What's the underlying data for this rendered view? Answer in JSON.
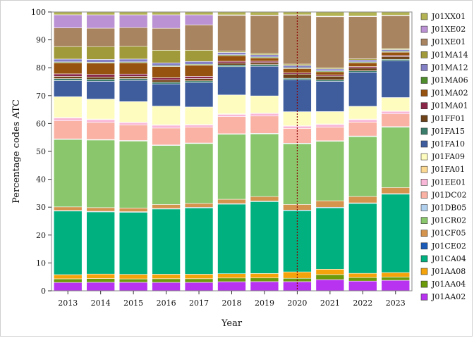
{
  "chart_data": {
    "type": "bar",
    "stacked": true,
    "xlabel": "Year",
    "ylabel": "Percentage codes ATC",
    "ylim": [
      0,
      100
    ],
    "yticks": [
      0,
      10,
      20,
      30,
      40,
      50,
      60,
      70,
      80,
      90,
      100
    ],
    "grid": false,
    "legend_position": "right",
    "annotations": [
      {
        "type": "vertical-dotted-line",
        "x": "2020",
        "color": "#8b0000"
      }
    ],
    "categories": [
      "2013",
      "2014",
      "2015",
      "2016",
      "2017",
      "2018",
      "2019",
      "2020",
      "2021",
      "2022",
      "2023"
    ],
    "series": [
      {
        "name": "J01AA02",
        "color": "#b833f0",
        "values": [
          3.0,
          3.0,
          3.0,
          3.0,
          3.0,
          3.2,
          3.3,
          3.3,
          4.0,
          3.5,
          3.8
        ]
      },
      {
        "name": "J01AA04",
        "color": "#6b9a0a",
        "values": [
          1.3,
          1.3,
          1.2,
          1.3,
          1.3,
          1.3,
          1.3,
          1.2,
          1.8,
          1.3,
          1.2
        ]
      },
      {
        "name": "J01AA08",
        "color": "#f5a30a",
        "values": [
          1.5,
          1.6,
          1.6,
          1.6,
          1.6,
          1.5,
          1.6,
          2.3,
          1.9,
          1.5,
          1.6
        ]
      },
      {
        "name": "J01CA04",
        "color": "#00b07f",
        "values": [
          22.8,
          21.9,
          21.9,
          23.2,
          23.6,
          24.4,
          25.7,
          22.0,
          21.9,
          25.2,
          28.3
        ]
      },
      {
        "name": "J01CE02",
        "color": "#1c5cb8",
        "values": [
          0.2,
          0.2,
          0.2,
          0.2,
          0.2,
          0.2,
          0.2,
          0.2,
          0.2,
          0.2,
          0.2
        ]
      },
      {
        "name": "J01CF05",
        "color": "#d5944e",
        "values": [
          1.3,
          1.3,
          1.3,
          1.4,
          1.4,
          1.5,
          1.6,
          2.0,
          2.3,
          2.3,
          2.2
        ]
      },
      {
        "name": "J01CR02",
        "color": "#8ac76c",
        "values": [
          24.2,
          23.8,
          23.6,
          21.0,
          21.3,
          22.8,
          22.4,
          21.8,
          21.2,
          21.6,
          21.8
        ]
      },
      {
        "name": "J01DB05",
        "color": "#b0d0ee",
        "values": [
          0.2,
          0.2,
          0.2,
          0.2,
          0.2,
          0.2,
          0.2,
          0.2,
          0.2,
          0.2,
          0.2
        ]
      },
      {
        "name": "J01DC02",
        "color": "#f9b2a4",
        "values": [
          6.5,
          6.0,
          5.5,
          6.0,
          5.6,
          6.0,
          6.2,
          5.3,
          4.8,
          5.0,
          4.6
        ]
      },
      {
        "name": "J01EE01",
        "color": "#f9b8d8",
        "values": [
          1.0,
          1.0,
          0.8,
          1.0,
          0.8,
          0.8,
          0.9,
          0.8,
          1.0,
          0.9,
          0.9
        ]
      },
      {
        "name": "J01FA01",
        "color": "#fcd992",
        "values": [
          0.2,
          0.2,
          0.2,
          0.2,
          0.2,
          0.2,
          0.2,
          0.2,
          0.2,
          0.2,
          0.2
        ]
      },
      {
        "name": "J01FA09",
        "color": "#fefcbe",
        "values": [
          7.4,
          7.0,
          7.2,
          6.6,
          6.2,
          6.6,
          6.1,
          5.0,
          4.4,
          4.6,
          4.8
        ]
      },
      {
        "name": "J01FA10",
        "color": "#3f5d9d",
        "values": [
          5.8,
          6.3,
          7.5,
          7.9,
          8.7,
          9.9,
          10.6,
          11.5,
          10.8,
          12.3,
          13.3
        ]
      },
      {
        "name": "J01FA15",
        "color": "#3a7d6a",
        "values": [
          0.7,
          0.7,
          0.6,
          0.6,
          0.6,
          0.6,
          0.6,
          0.5,
          0.5,
          0.5,
          0.5
        ]
      },
      {
        "name": "J01FF01",
        "color": "#6e4218",
        "values": [
          0.8,
          0.8,
          0.8,
          0.8,
          0.8,
          0.7,
          0.7,
          1.5,
          1.3,
          1.0,
          1.0
        ]
      },
      {
        "name": "J01MA01",
        "color": "#8a2749",
        "values": [
          0.9,
          0.9,
          0.8,
          0.8,
          0.8,
          0.6,
          0.5,
          0.4,
          0.4,
          0.5,
          0.4
        ]
      },
      {
        "name": "J01MA02",
        "color": "#96520f",
        "values": [
          4.0,
          4.0,
          4.0,
          4.0,
          4.0,
          2.0,
          1.2,
          1.6,
          1.2,
          1.4,
          1.2
        ]
      },
      {
        "name": "J01MA06",
        "color": "#4e8c2c",
        "values": [
          0.3,
          0.3,
          0.3,
          0.3,
          0.3,
          0.3,
          0.3,
          0.3,
          0.3,
          0.3,
          0.3
        ]
      },
      {
        "name": "J01MA12",
        "color": "#8480c6",
        "values": [
          1.0,
          1.0,
          1.0,
          1.0,
          1.0,
          0.8,
          0.8,
          0.8,
          0.7,
          0.7,
          0.6
        ]
      },
      {
        "name": "J01MA14",
        "color": "#a19a3a",
        "values": [
          4.5,
          4.5,
          4.5,
          4.5,
          4.0,
          0.5,
          0.5,
          0.5,
          0.4,
          0.4,
          0.4
        ]
      },
      {
        "name": "J01XE01",
        "color": "#a98460",
        "values": [
          6.7,
          6.5,
          6.6,
          7.8,
          9.0,
          12.5,
          13.5,
          17.5,
          18.2,
          15.2,
          11.8
        ]
      },
      {
        "name": "J01XE02",
        "color": "#bb92d4",
        "values": [
          4.7,
          4.7,
          4.5,
          4.8,
          3.6,
          0.2,
          0.2,
          0.2,
          0.2,
          0.2,
          0.2
        ]
      },
      {
        "name": "J01XX01",
        "color": "#b3b353",
        "values": [
          1.0,
          1.0,
          1.0,
          1.0,
          1.0,
          1.0,
          1.1,
          1.0,
          1.5,
          1.5,
          1.2
        ]
      }
    ]
  }
}
